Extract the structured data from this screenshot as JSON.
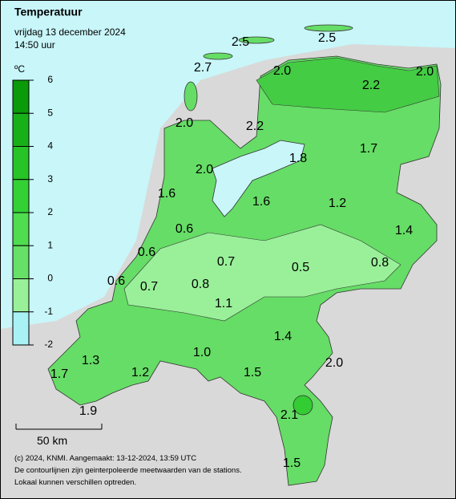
{
  "header": {
    "title": "Temperatuur",
    "date": "vrijdag 13 december 2024",
    "time": "14:50 uur"
  },
  "legend": {
    "unit": "ºC",
    "ticks": [
      6,
      5,
      4,
      3,
      2,
      1,
      0,
      -1,
      -2
    ],
    "colors": [
      "#0a9a0a",
      "#18b018",
      "#26c426",
      "#33d133",
      "#4fdc4f",
      "#66e066",
      "#99f099",
      "#a8f2f6",
      "#22d3e6"
    ]
  },
  "labels": [
    "2.5",
    "2.5",
    "2.7",
    "2.0",
    "2.0",
    "2.2",
    "2.0",
    "2.2",
    "1.8",
    "1.7",
    "2.0",
    "1.6",
    "1.6",
    "1.2",
    "1.4",
    "0.6",
    "0.6",
    "0.7",
    "0.5",
    "0.8",
    "0.6",
    "0.7",
    "0.8",
    "1.1",
    "1.4",
    "1.3",
    "1.0",
    "2.0",
    "1.7",
    "1.2",
    "1.5",
    "2.1",
    "1.9",
    "1.5"
  ],
  "scale": "50 km",
  "footer": [
    "(c) 2024, KNMI. Aangemaakt: 13-12-2024, 13:59 UTC",
    "De contourlijnen zijn geinterpoleerde meetwaarden van de stations.",
    "Lokaal kunnen verschillen optreden."
  ]
}
